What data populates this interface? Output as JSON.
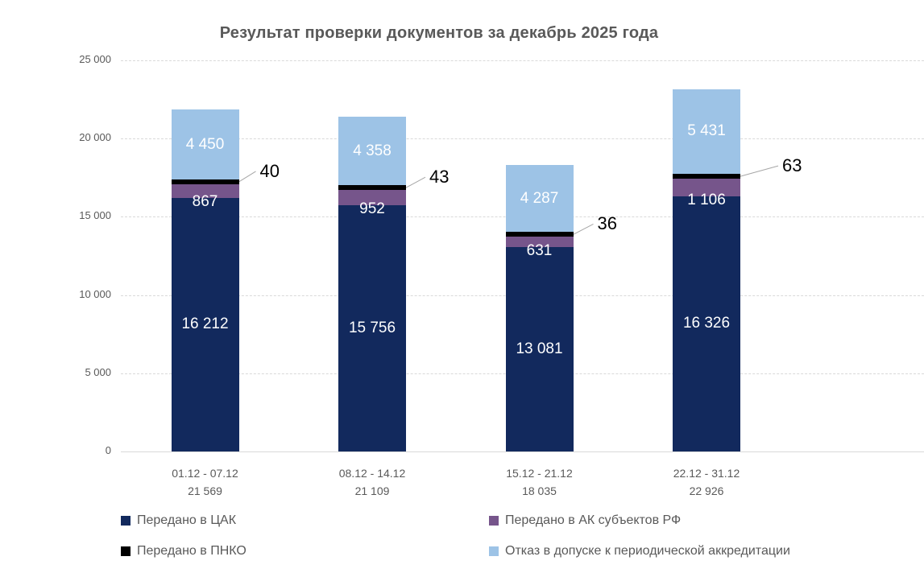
{
  "chart_data": {
    "type": "bar",
    "stacked": true,
    "title": "Результат проверки документов за декабрь 2025 года",
    "categories": [
      "01.12 - 07.12",
      "08.12 - 14.12",
      "15.12 - 21.12",
      "22.12 - 31.12"
    ],
    "category_totals": [
      "21 569",
      "21 109",
      "18 035",
      "22 926"
    ],
    "series": [
      {
        "name": "Передано в ЦАК",
        "color": "#12295d",
        "values": [
          16212,
          15756,
          13081,
          16326
        ],
        "labels": [
          "16 212",
          "15 756",
          "13 081",
          "16 326"
        ],
        "label_style": "inside"
      },
      {
        "name": "Передано в АК субъектов РФ",
        "color": "#76558b",
        "values": [
          867,
          952,
          631,
          1106
        ],
        "labels": [
          "867",
          "952",
          "631",
          "1 106"
        ],
        "label_style": "inside-below"
      },
      {
        "name": "Передано в ПНКО",
        "color": "#000000",
        "values": [
          40,
          43,
          36,
          63
        ],
        "labels": [
          "40",
          "43",
          "36",
          "63"
        ],
        "label_style": "callout"
      },
      {
        "name": "Отказ в допуске к периодической аккредитации",
        "color": "#9dc3e6",
        "values": [
          4450,
          4358,
          4287,
          5431
        ],
        "labels": [
          "4 450",
          "4 358",
          "4 287",
          "5 431"
        ],
        "label_style": "inside"
      }
    ],
    "ylim": [
      0,
      25000
    ],
    "yticks": [
      "0",
      "5 000",
      "10 000",
      "15 000",
      "20 000",
      "25 000"
    ],
    "grid": true,
    "legend_position": "bottom"
  },
  "colors": {
    "grid": "#d9d9d9",
    "axis_text": "#595959",
    "title_text": "#595959",
    "value_label_text": "#ffffff",
    "callout_text": "#000000",
    "callout_line": "#a6a6a6"
  }
}
